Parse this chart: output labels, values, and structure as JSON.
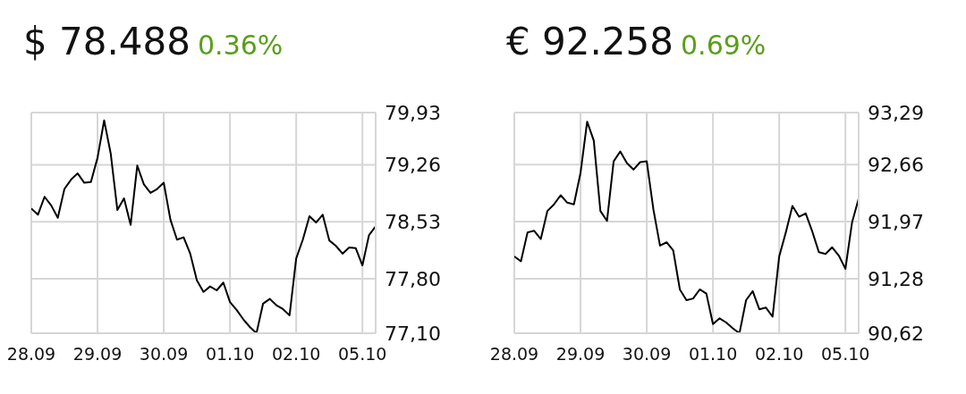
{
  "chart_data": [
    {
      "type": "line",
      "title": "$ 78.488",
      "subtitle": "0.36%",
      "color": "#000000",
      "categories": [
        "28.09",
        null,
        null,
        null,
        null,
        null,
        null,
        null,
        null,
        null,
        "29.09",
        null,
        null,
        null,
        null,
        null,
        null,
        null,
        null,
        null,
        "30.09",
        null,
        null,
        null,
        null,
        null,
        null,
        null,
        null,
        null,
        "01.10",
        null,
        null,
        null,
        null,
        null,
        null,
        null,
        null,
        null,
        "02.10",
        null,
        null,
        null,
        null,
        null,
        null,
        null,
        null,
        null,
        "05.10",
        null,
        null
      ],
      "values": [
        78.7,
        78.62,
        78.85,
        78.74,
        78.58,
        78.95,
        79.07,
        79.15,
        79.03,
        79.04,
        79.35,
        79.83,
        79.4,
        78.68,
        78.83,
        78.49,
        79.25,
        79.01,
        78.9,
        78.95,
        79.03,
        78.56,
        78.3,
        78.33,
        78.12,
        77.78,
        77.63,
        77.7,
        77.65,
        77.75,
        77.5,
        77.4,
        77.28,
        77.18,
        77.1,
        77.48,
        77.54,
        77.46,
        77.41,
        77.33,
        78.06,
        78.3,
        78.6,
        78.52,
        78.62,
        78.29,
        78.22,
        78.12,
        78.2,
        78.19,
        77.97,
        78.36,
        78.47
      ],
      "ylim": [
        77.1,
        79.93
      ],
      "yticks": [
        {
          "value": 77.1,
          "label": "77,10"
        },
        {
          "value": 77.8,
          "label": "77,80"
        },
        {
          "value": 78.53,
          "label": "78,53"
        },
        {
          "value": 79.26,
          "label": "79,26"
        },
        {
          "value": 79.93,
          "label": "79,93"
        }
      ],
      "grid": true
    },
    {
      "type": "line",
      "title": "€ 92.258",
      "subtitle": "0.69%",
      "color": "#000000",
      "categories": [
        "28.09",
        null,
        null,
        null,
        null,
        null,
        null,
        null,
        null,
        null,
        "29.09",
        null,
        null,
        null,
        null,
        null,
        null,
        null,
        null,
        null,
        "30.09",
        null,
        null,
        null,
        null,
        null,
        null,
        null,
        null,
        null,
        "01.10",
        null,
        null,
        null,
        null,
        null,
        null,
        null,
        null,
        null,
        "02.10",
        null,
        null,
        null,
        null,
        null,
        null,
        null,
        null,
        null,
        "05.10",
        null,
        null
      ],
      "values": [
        91.55,
        91.49,
        91.84,
        91.86,
        91.76,
        92.1,
        92.18,
        92.29,
        92.2,
        92.18,
        92.56,
        93.18,
        92.95,
        92.1,
        91.98,
        92.7,
        92.82,
        92.68,
        92.6,
        92.69,
        92.7,
        92.12,
        91.68,
        91.72,
        91.62,
        91.15,
        91.02,
        91.04,
        91.15,
        91.1,
        90.73,
        90.8,
        90.75,
        90.68,
        90.62,
        91.02,
        91.13,
        90.91,
        90.93,
        90.82,
        91.55,
        91.84,
        92.16,
        92.03,
        92.07,
        91.85,
        91.6,
        91.58,
        91.66,
        91.56,
        91.4,
        91.96,
        92.25
      ],
      "ylim": [
        90.62,
        93.29
      ],
      "yticks": [
        {
          "value": 90.62,
          "label": "90,62"
        },
        {
          "value": 91.28,
          "label": "91,28"
        },
        {
          "value": 91.97,
          "label": "91,97"
        },
        {
          "value": 92.66,
          "label": "92,66"
        },
        {
          "value": 93.29,
          "label": "93,29"
        }
      ],
      "grid": true
    }
  ]
}
